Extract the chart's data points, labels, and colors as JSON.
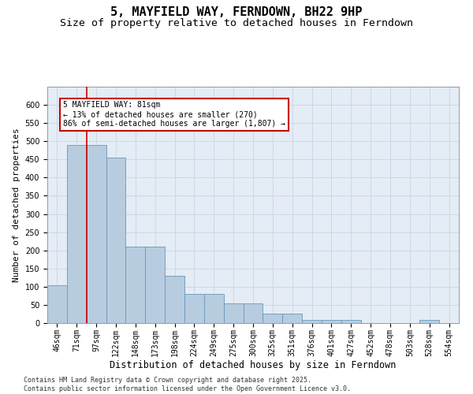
{
  "title": "5, MAYFIELD WAY, FERNDOWN, BH22 9HP",
  "subtitle": "Size of property relative to detached houses in Ferndown",
  "xlabel": "Distribution of detached houses by size in Ferndown",
  "ylabel": "Number of detached properties",
  "footer": "Contains HM Land Registry data © Crown copyright and database right 2025.\nContains public sector information licensed under the Open Government Licence v3.0.",
  "categories": [
    "46sqm",
    "71sqm",
    "97sqm",
    "122sqm",
    "148sqm",
    "173sqm",
    "198sqm",
    "224sqm",
    "249sqm",
    "275sqm",
    "300sqm",
    "325sqm",
    "351sqm",
    "376sqm",
    "401sqm",
    "427sqm",
    "452sqm",
    "478sqm",
    "503sqm",
    "528sqm",
    "554sqm"
  ],
  "values": [
    105,
    490,
    490,
    455,
    210,
    210,
    130,
    80,
    80,
    55,
    55,
    25,
    25,
    8,
    8,
    8,
    0,
    0,
    0,
    8,
    0
  ],
  "bar_color": "#b8ccdf",
  "bar_edge_color": "#6699bb",
  "grid_color": "#cdd7e5",
  "bg_color": "#e4ecf5",
  "vline_color": "#cc0000",
  "annotation_text": "5 MAYFIELD WAY: 81sqm\n← 13% of detached houses are smaller (270)\n86% of semi-detached houses are larger (1,807) →",
  "annotation_box_color": "#cc0000",
  "ylim": [
    0,
    650
  ],
  "yticks": [
    0,
    50,
    100,
    150,
    200,
    250,
    300,
    350,
    400,
    450,
    500,
    550,
    600
  ],
  "title_fontsize": 11,
  "subtitle_fontsize": 9.5,
  "xlabel_fontsize": 8.5,
  "ylabel_fontsize": 8,
  "tick_fontsize": 7,
  "annotation_fontsize": 7,
  "footer_fontsize": 6
}
